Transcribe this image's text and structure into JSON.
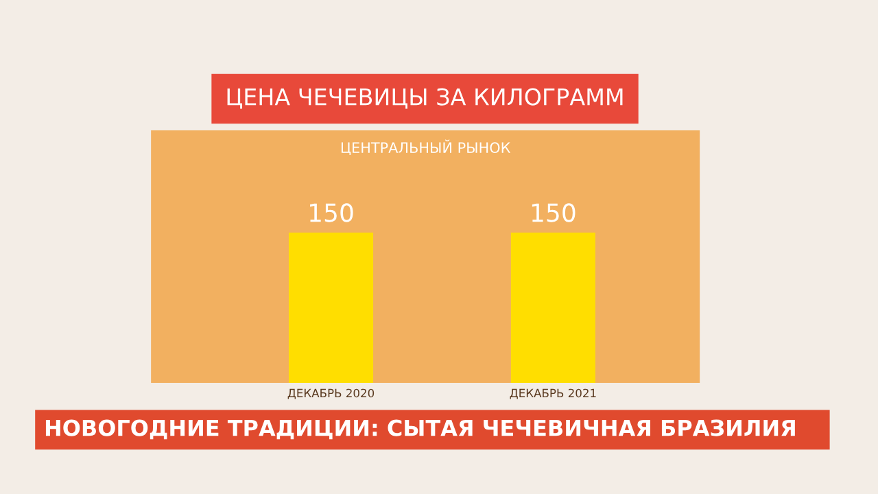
{
  "chart_data": {
    "type": "bar",
    "title": "ЦЕНА ЧЕЧЕВИЦЫ ЗА КИЛОГРАММ",
    "subtitle": "ЦЕНТРАЛЬНЫЙ РЫНОК",
    "categories": [
      "ДЕКАБРЬ 2020",
      "ДЕКАБРЬ 2021"
    ],
    "values": [
      150,
      150
    ],
    "color": "#ffde00",
    "data_labels": true,
    "grid": false,
    "legend": false,
    "annotations": [
      "НОВОГОДНИЕ ТРАДИЦИИ: СЫТАЯ ЧЕЧЕВИЧНАЯ БРАЗИЛИЯ"
    ]
  }
}
